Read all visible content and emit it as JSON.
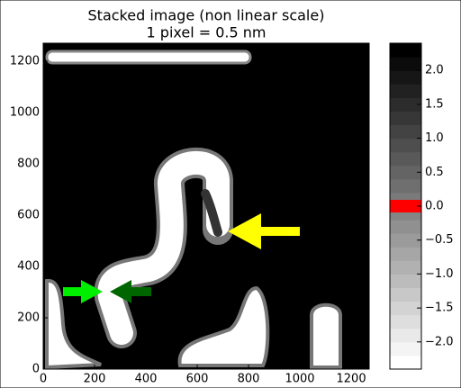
{
  "chart_data": {
    "type": "image",
    "title": "Stacked image (non linear scale)",
    "subtitle": "1 pixel = 0.5 nm",
    "xlim": [
      0,
      1270
    ],
    "ylim": [
      0,
      1270
    ],
    "xticks": [
      0,
      200,
      400,
      600,
      800,
      1000,
      1200
    ],
    "yticks": [
      0,
      200,
      400,
      600,
      800,
      1000,
      1200
    ],
    "colorbar": {
      "lim": [
        -2.4,
        2.4
      ],
      "zero_color": "#ff0000",
      "ticks": [
        {
          "value": 2.0,
          "label": "2.0"
        },
        {
          "value": 1.5,
          "label": "1.5"
        },
        {
          "value": 1.0,
          "label": "1.0"
        },
        {
          "value": 0.5,
          "label": "0.5"
        },
        {
          "value": 0.0,
          "label": "0.0"
        },
        {
          "value": -0.5,
          "label": "−0.5"
        },
        {
          "value": -1.0,
          "label": "−1.0"
        },
        {
          "value": -1.5,
          "label": "−1.5"
        },
        {
          "value": -2.0,
          "label": "−2.0"
        }
      ]
    }
  }
}
